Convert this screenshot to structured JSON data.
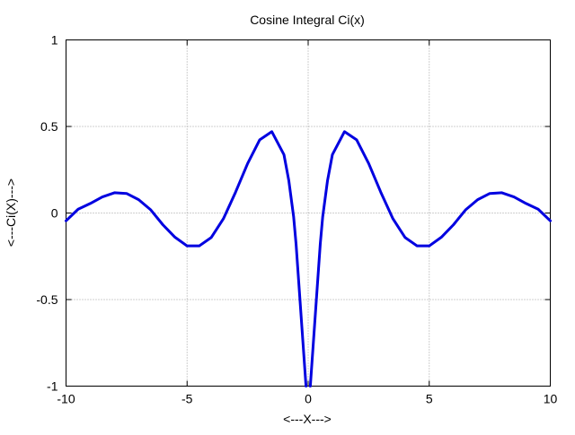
{
  "chart_data": {
    "type": "line",
    "title": "Cosine Integral Ci(x)",
    "xlabel": "<---X--->",
    "ylabel": "<---Ci(X)--->",
    "xlim": [
      -10,
      10
    ],
    "ylim": [
      -1,
      1
    ],
    "x_ticks": [
      "-10",
      "-5",
      "0",
      "5",
      "10"
    ],
    "y_ticks": [
      "1",
      "0.5",
      "0",
      "-0.5",
      "-1"
    ],
    "grid": true,
    "series": [
      {
        "color": "#0000e0",
        "x": [
          -10,
          -9.5,
          -9,
          -8.5,
          -8,
          -7.5,
          -7,
          -6.5,
          -6,
          -5.5,
          -5,
          -4.5,
          -4,
          -3.5,
          -3,
          -2.5,
          -2,
          -1.5,
          -1,
          -0.8,
          -0.6,
          -0.5,
          -0.4,
          0.4,
          0.5,
          0.6,
          0.8,
          1,
          1.5,
          2,
          2.5,
          3,
          3.5,
          4,
          4.5,
          5,
          5.5,
          6,
          6.5,
          7,
          7.5,
          8,
          8.5,
          9,
          9.5,
          10
        ],
        "y": [
          -0.045,
          0.022,
          0.055,
          0.093,
          0.117,
          0.113,
          0.077,
          0.018,
          -0.068,
          -0.14,
          -0.19,
          -0.19,
          -0.141,
          -0.033,
          0.12,
          0.286,
          0.423,
          0.47,
          0.337,
          0.188,
          -0.022,
          -0.178,
          -0.378,
          -0.378,
          -0.178,
          -0.022,
          0.188,
          0.337,
          0.47,
          0.423,
          0.286,
          0.12,
          -0.033,
          -0.141,
          -0.19,
          -0.19,
          -0.14,
          -0.068,
          0.018,
          0.077,
          0.113,
          0.117,
          0.093,
          0.055,
          0.022,
          -0.045
        ]
      }
    ]
  }
}
